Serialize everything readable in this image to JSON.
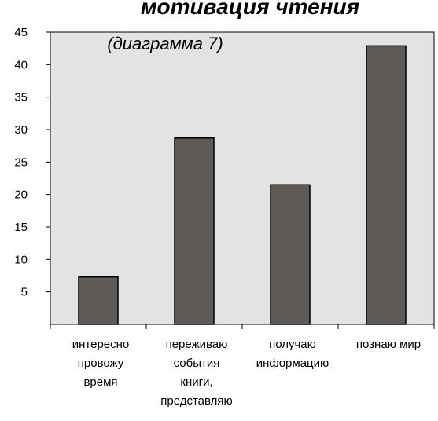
{
  "chart_data": {
    "type": "bar",
    "title": "мотивация чтения",
    "subtitle": "(диаграмма 7)",
    "categories": [
      [
        "интересно",
        "провожу",
        "время"
      ],
      [
        "переживаю",
        "события",
        "книги,",
        "представляю"
      ],
      [
        "получаю",
        "информацию"
      ],
      [
        "познаю  мир"
      ]
    ],
    "values": [
      7.3,
      28.7,
      21.5,
      42.9
    ],
    "ylim": [
      0,
      45
    ],
    "yticks": [
      5,
      10,
      15,
      20,
      25,
      30,
      35,
      40,
      45
    ],
    "grid": false,
    "plot_background": "#e3e3e3",
    "bar_color": "#5e5a57"
  }
}
